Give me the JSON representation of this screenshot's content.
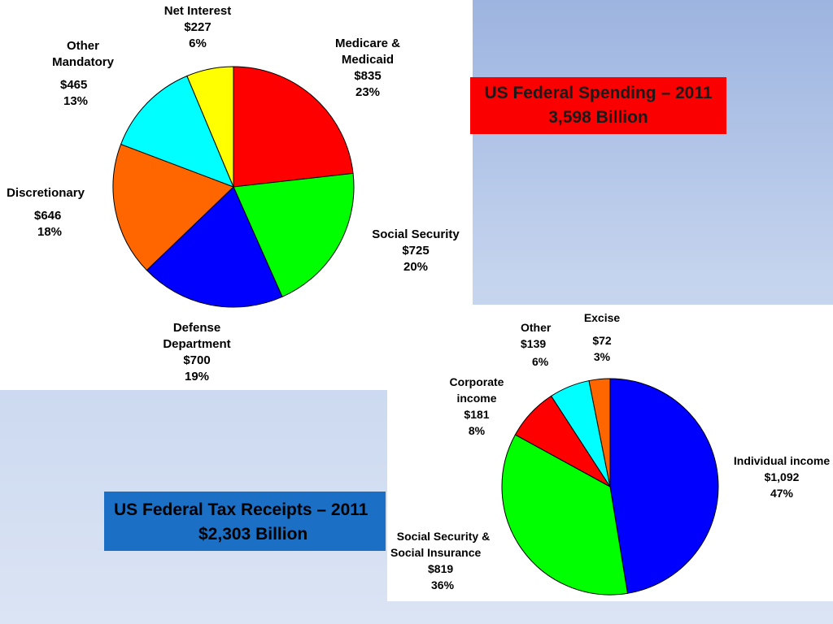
{
  "colors": {
    "spending_title_bg": "#fb0000",
    "tax_title_bg": "#1b6fc4"
  },
  "spending": {
    "title_line1": "US Federal Spending – 2011",
    "title_line2": "3,598 Billion"
  },
  "tax": {
    "title_line1": "US Federal Tax Receipts – 2011",
    "title_line2": "$2,303 Billion"
  },
  "chart_data": [
    {
      "type": "pie",
      "title": "US Federal Spending – 2011",
      "subtitle": "3,598 Billion",
      "slices": [
        {
          "name": "Medicare & Medicaid",
          "value": 835,
          "pct": "23%",
          "label_value": "$835",
          "color": "#ff0000"
        },
        {
          "name": "Social Security",
          "value": 725,
          "pct": "20%",
          "label_value": "$725",
          "color": "#00ff00"
        },
        {
          "name": "Defense Department",
          "value": 700,
          "pct": "19%",
          "label_value": "$700",
          "color": "#0000ff"
        },
        {
          "name": "Discretionary",
          "value": 646,
          "pct": "18%",
          "label_value": "$646",
          "color": "#ff6600"
        },
        {
          "name": "Other Mandatory",
          "value": 465,
          "pct": "13%",
          "label_value": "$465",
          "color": "#00ffff"
        },
        {
          "name": "Net Interest",
          "value": 227,
          "pct": "6%",
          "label_value": "$227",
          "color": "#ffff00"
        }
      ]
    },
    {
      "type": "pie",
      "title": "US Federal Tax Receipts – 2011",
      "subtitle": "$2,303 Billion",
      "slices": [
        {
          "name": "Individual income",
          "value": 1092,
          "pct": "47%",
          "label_value": "$1,092",
          "color": "#0000ff"
        },
        {
          "name": "Social Security & Social Insurance",
          "value": 819,
          "pct": "36%",
          "label_value": "$819",
          "color": "#00ff00"
        },
        {
          "name": "Corporate income",
          "value": 181,
          "pct": "8%",
          "label_value": "$181",
          "color": "#ff0000"
        },
        {
          "name": "Other",
          "value": 139,
          "pct": "6%",
          "label_value": "$139",
          "color": "#00ffff"
        },
        {
          "name": "Excise",
          "value": 72,
          "pct": "3%",
          "label_value": "$72",
          "color": "#ff6600"
        }
      ]
    }
  ]
}
